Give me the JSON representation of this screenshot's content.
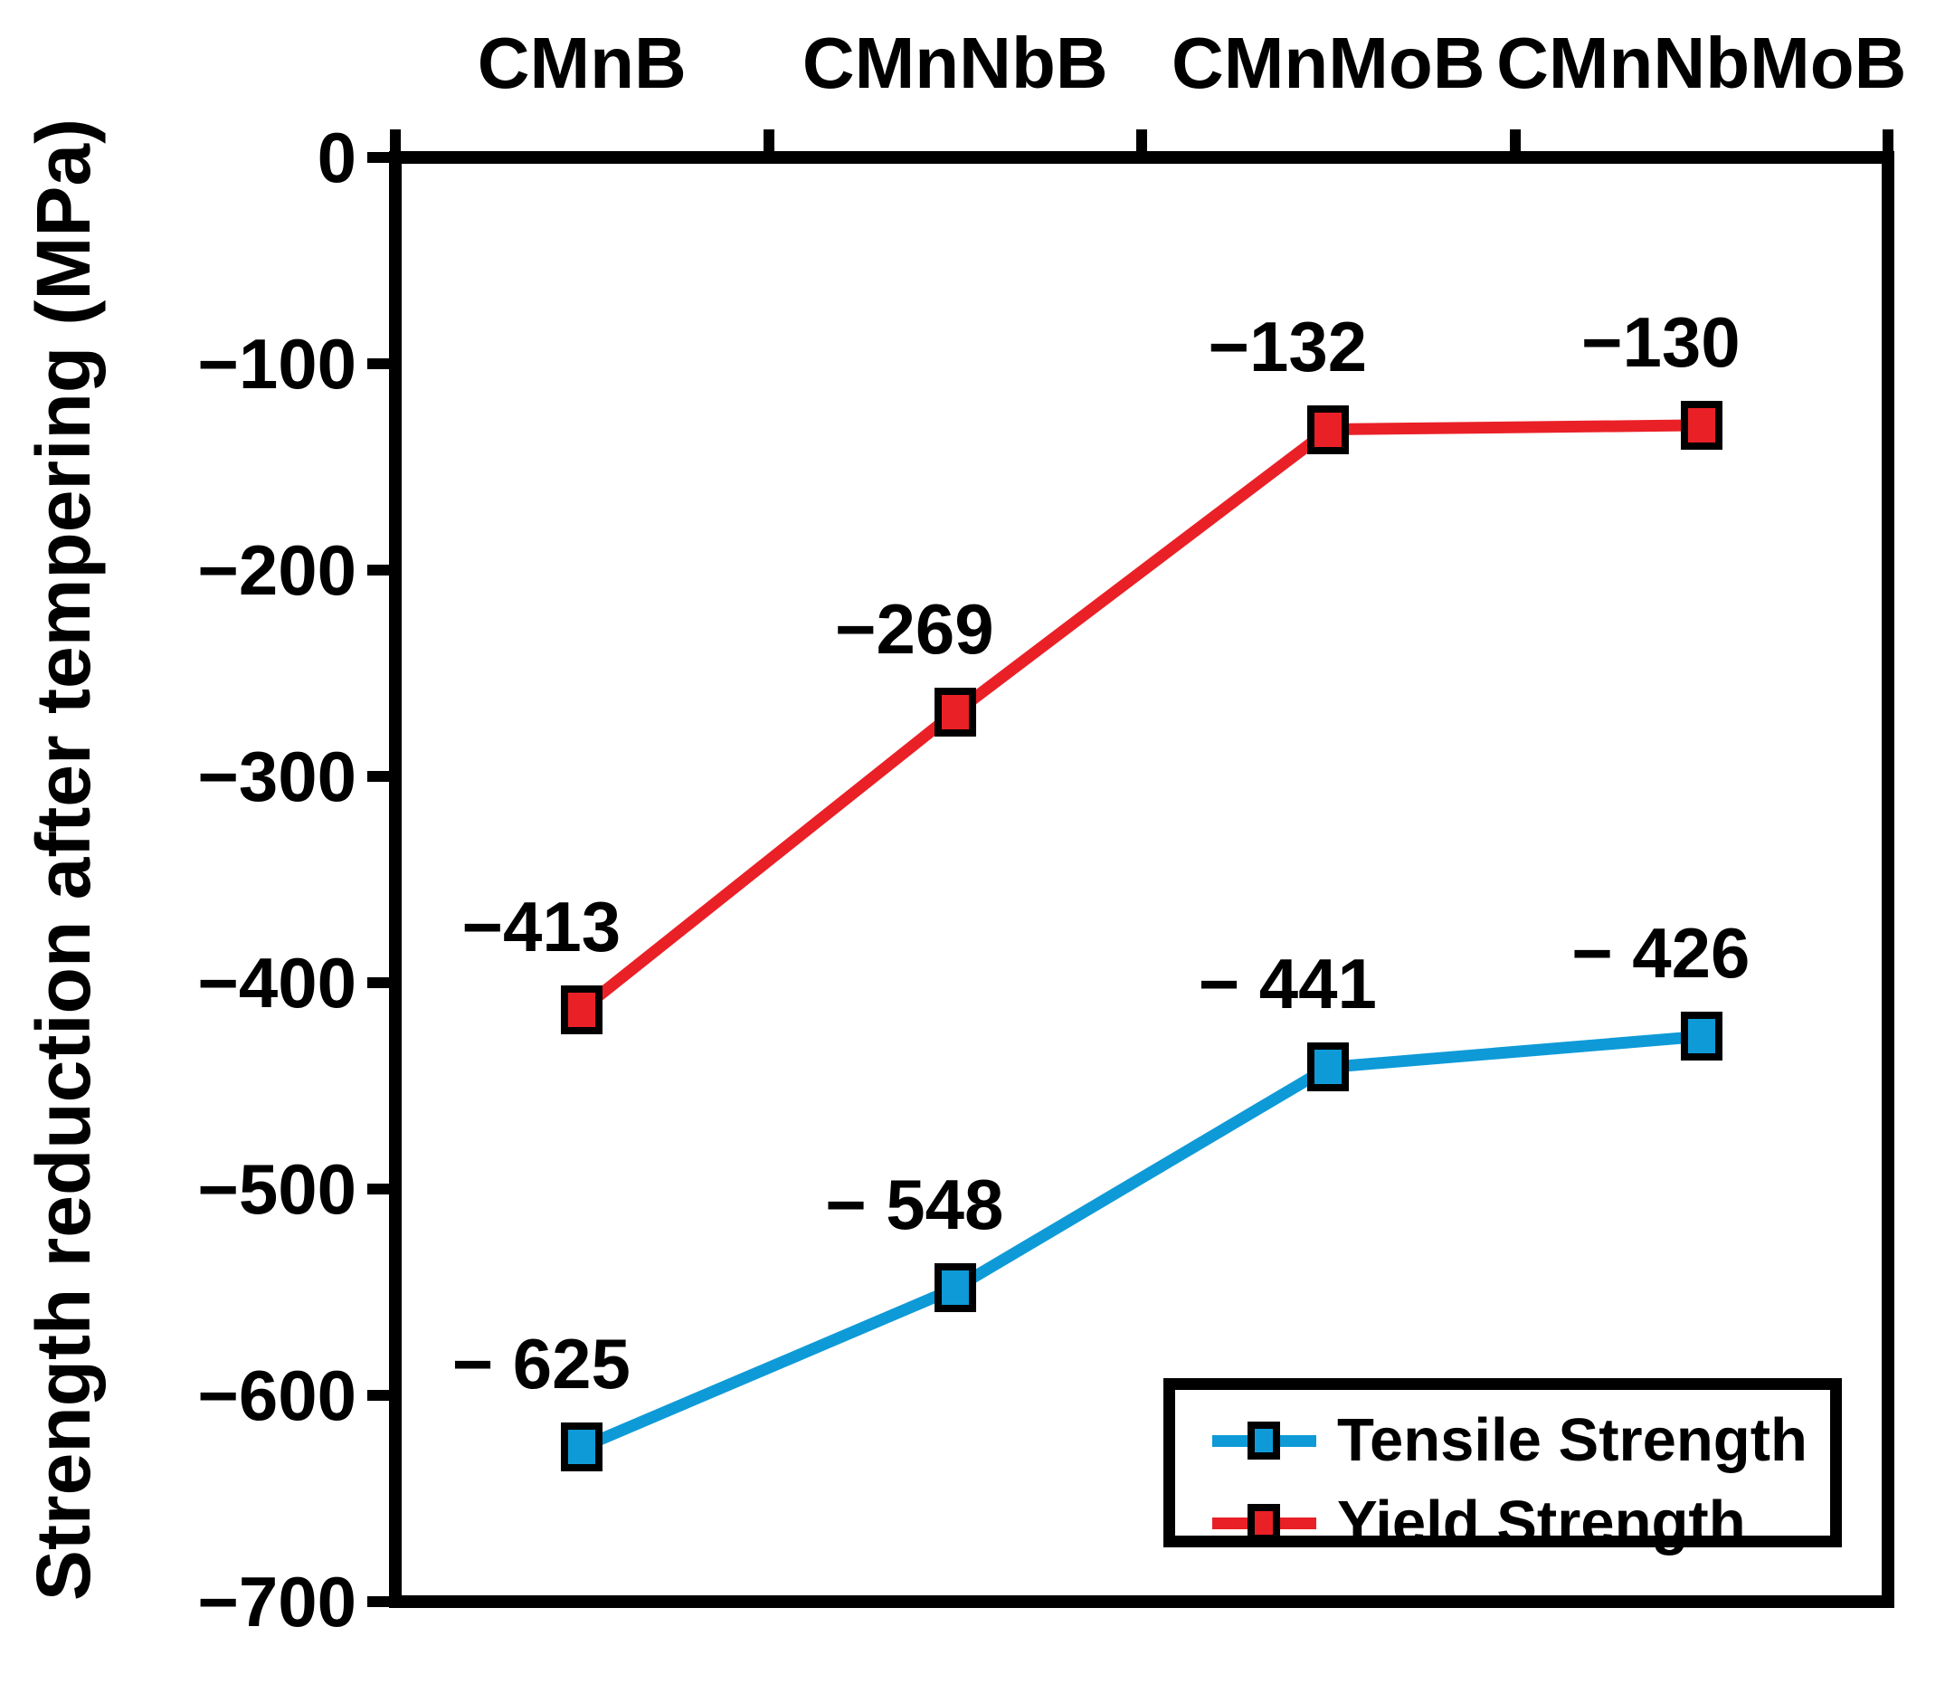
{
  "chart_data": {
    "type": "line",
    "categories": [
      "CMnB",
      "CMnNbB",
      "CMnMoB",
      "CMnNbMoB"
    ],
    "series": [
      {
        "name": "Tensile Strength",
        "color": "#0E9AD7",
        "values": [
          -625,
          -548,
          -441,
          -426
        ],
        "point_labels": [
          "− 625",
          "− 548",
          "− 441",
          "− 426"
        ]
      },
      {
        "name": "Yield Strength",
        "color": "#EA2027",
        "values": [
          -413,
          -269,
          -132,
          -130
        ],
        "point_labels": [
          "−413",
          "−269",
          "−132",
          "−130"
        ]
      }
    ],
    "title": "",
    "xlabel": "",
    "ylabel": "Strength reduction after tempering (MPa)",
    "ylim": [
      -700,
      0
    ],
    "ytick_step": 100,
    "ytick_labels": [
      "0",
      "−100",
      "−200",
      "−300",
      "−400",
      "−500",
      "−600",
      "−700"
    ],
    "x_axis_position": "top",
    "grid": false,
    "marker_shape": "square",
    "legend_position": "bottom-right"
  },
  "legend": {
    "items": [
      {
        "label": "Tensile Strength",
        "color": "#0E9AD7"
      },
      {
        "label": "Yield Strength",
        "color": "#EA2027"
      }
    ]
  },
  "colors": {
    "axis": "#000000",
    "text": "#000000",
    "background": "#ffffff",
    "tensile": "#0E9AD7",
    "yield": "#EA2027"
  }
}
